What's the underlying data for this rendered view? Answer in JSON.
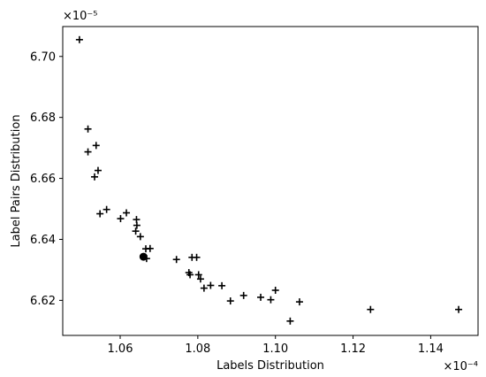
{
  "chart_data": {
    "type": "scatter",
    "xlabel": "Labels Distribution",
    "ylabel": "Label Pairs Distribution",
    "x_multiplier": "×10⁻⁴",
    "y_multiplier": "×10⁻⁵",
    "xlim": [
      1.0452,
      1.1522
    ],
    "ylim": [
      6.6085,
      6.7098
    ],
    "x_ticks": [
      1.06,
      1.08,
      1.1,
      1.12,
      1.14
    ],
    "x_tick_labels": [
      "1.06",
      "1.08",
      "1.10",
      "1.12",
      "1.14"
    ],
    "y_ticks": [
      6.62,
      6.64,
      6.66,
      6.68,
      6.7
    ],
    "y_tick_labels": [
      "6.62",
      "6.64",
      "6.66",
      "6.68",
      "6.70"
    ],
    "grid": false,
    "series": [
      {
        "marker": "plus",
        "color": "#000000",
        "points": [
          [
            1.0495,
            6.7055
          ],
          [
            1.0517,
            6.6762
          ],
          [
            1.0538,
            6.6708
          ],
          [
            1.0517,
            6.6687
          ],
          [
            1.0543,
            6.6626
          ],
          [
            1.0534,
            6.6605
          ],
          [
            1.0565,
            6.6498
          ],
          [
            1.0548,
            6.6484
          ],
          [
            1.0616,
            6.6487
          ],
          [
            1.0601,
            6.6468
          ],
          [
            1.0642,
            6.6465
          ],
          [
            1.0643,
            6.6446
          ],
          [
            1.064,
            6.6427
          ],
          [
            1.0652,
            6.6409
          ],
          [
            1.0666,
            6.6369
          ],
          [
            1.0677,
            6.637
          ],
          [
            1.0668,
            6.6337
          ],
          [
            1.0745,
            6.6334
          ],
          [
            1.0785,
            6.6341
          ],
          [
            1.0797,
            6.6341
          ],
          [
            1.0777,
            6.6291
          ],
          [
            1.078,
            6.6284
          ],
          [
            1.0802,
            6.6284
          ],
          [
            1.0807,
            6.627
          ],
          [
            1.0816,
            6.624
          ],
          [
            1.0833,
            6.6249
          ],
          [
            1.0862,
            6.6248
          ],
          [
            1.0884,
            6.6198
          ],
          [
            1.0918,
            6.6216
          ],
          [
            1.0962,
            6.621
          ],
          [
            1.0988,
            6.6202
          ],
          [
            1.1,
            6.6233
          ],
          [
            1.1062,
            6.6195
          ],
          [
            1.1038,
            6.6132
          ],
          [
            1.1245,
            6.617
          ],
          [
            1.1472,
            6.617
          ]
        ]
      },
      {
        "marker": "circle",
        "color": "#000000",
        "points": [
          [
            1.066,
            6.6343
          ]
        ]
      }
    ]
  }
}
